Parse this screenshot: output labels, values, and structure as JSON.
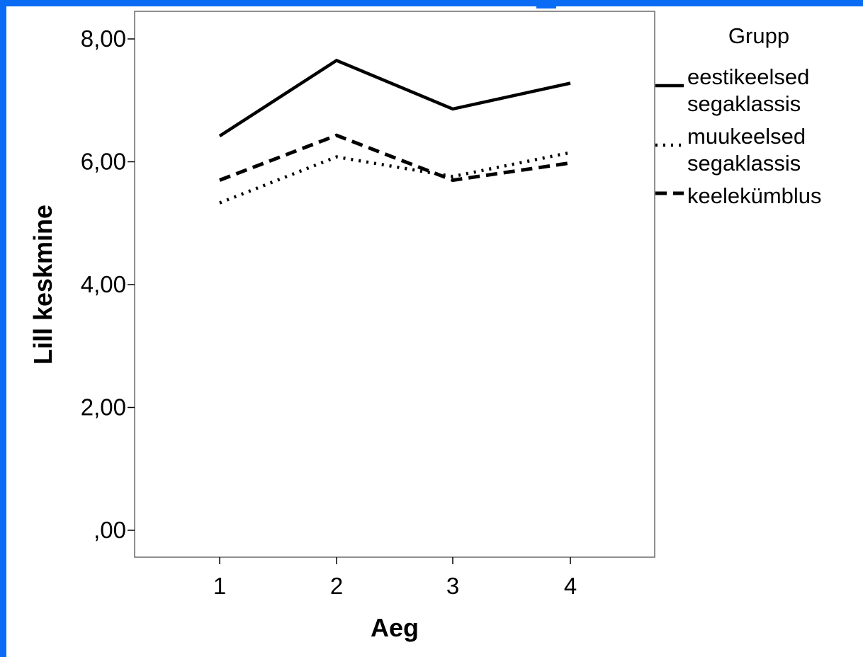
{
  "chart_data": {
    "type": "line",
    "title": "",
    "xlabel": "Aeg",
    "ylabel": "Lill keskmine",
    "categories": [
      "1",
      "2",
      "3",
      "4"
    ],
    "y_ticks": [
      ",00",
      "2,00",
      "4,00",
      "6,00",
      "8,00"
    ],
    "ylim": [
      0,
      8.75
    ],
    "grid": false,
    "legend_title": "Grupp",
    "legend_placement": "right",
    "series": [
      {
        "name": "eestikeelsed segaklassis",
        "name_lines": [
          "eestikeelsed",
          "segaklassis"
        ],
        "style": "solid",
        "values": [
          6.42,
          7.65,
          6.86,
          7.28
        ]
      },
      {
        "name": "muukeelsed segaklassis",
        "name_lines": [
          "muukeelsed",
          "segaklassis"
        ],
        "style": "dotted",
        "values": [
          5.33,
          6.08,
          5.76,
          6.15
        ]
      },
      {
        "name": "keelekümblus",
        "name_lines": [
          "keelekümblus"
        ],
        "style": "dashed",
        "values": [
          5.7,
          6.43,
          5.7,
          5.98
        ]
      }
    ],
    "colors": {
      "line": "#000000",
      "frame_accent": "#0a6cf5"
    }
  }
}
